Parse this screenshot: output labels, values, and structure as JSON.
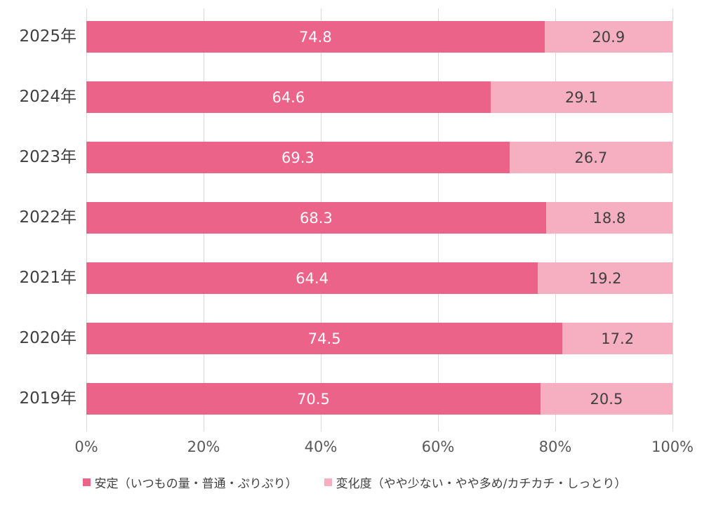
{
  "chart_data": {
    "type": "bar",
    "orientation": "horizontal",
    "stacked": true,
    "normalized_to_100": true,
    "categories": [
      "2025年",
      "2024年",
      "2023年",
      "2022年",
      "2021年",
      "2020年",
      "2019年"
    ],
    "series": [
      {
        "name": "安定（いつもの量・普通・ぷりぷり）",
        "color": "#EC6389",
        "label_color": "#ffffff",
        "values": [
          74.8,
          64.6,
          69.3,
          68.3,
          64.4,
          74.5,
          70.5
        ]
      },
      {
        "name": "変化度（やや少ない・やや多め/カチカチ・しっとり）",
        "color": "#F5AFC1",
        "label_color": "#404040",
        "values": [
          20.9,
          29.1,
          26.7,
          18.8,
          19.2,
          17.2,
          20.5
        ]
      }
    ],
    "x_ticks": [
      "0%",
      "20%",
      "40%",
      "60%",
      "80%",
      "100%"
    ],
    "xlim": [
      0,
      100
    ],
    "grid": "vertical",
    "gridline_color": "#d9d9d9",
    "legend_position": "bottom"
  }
}
